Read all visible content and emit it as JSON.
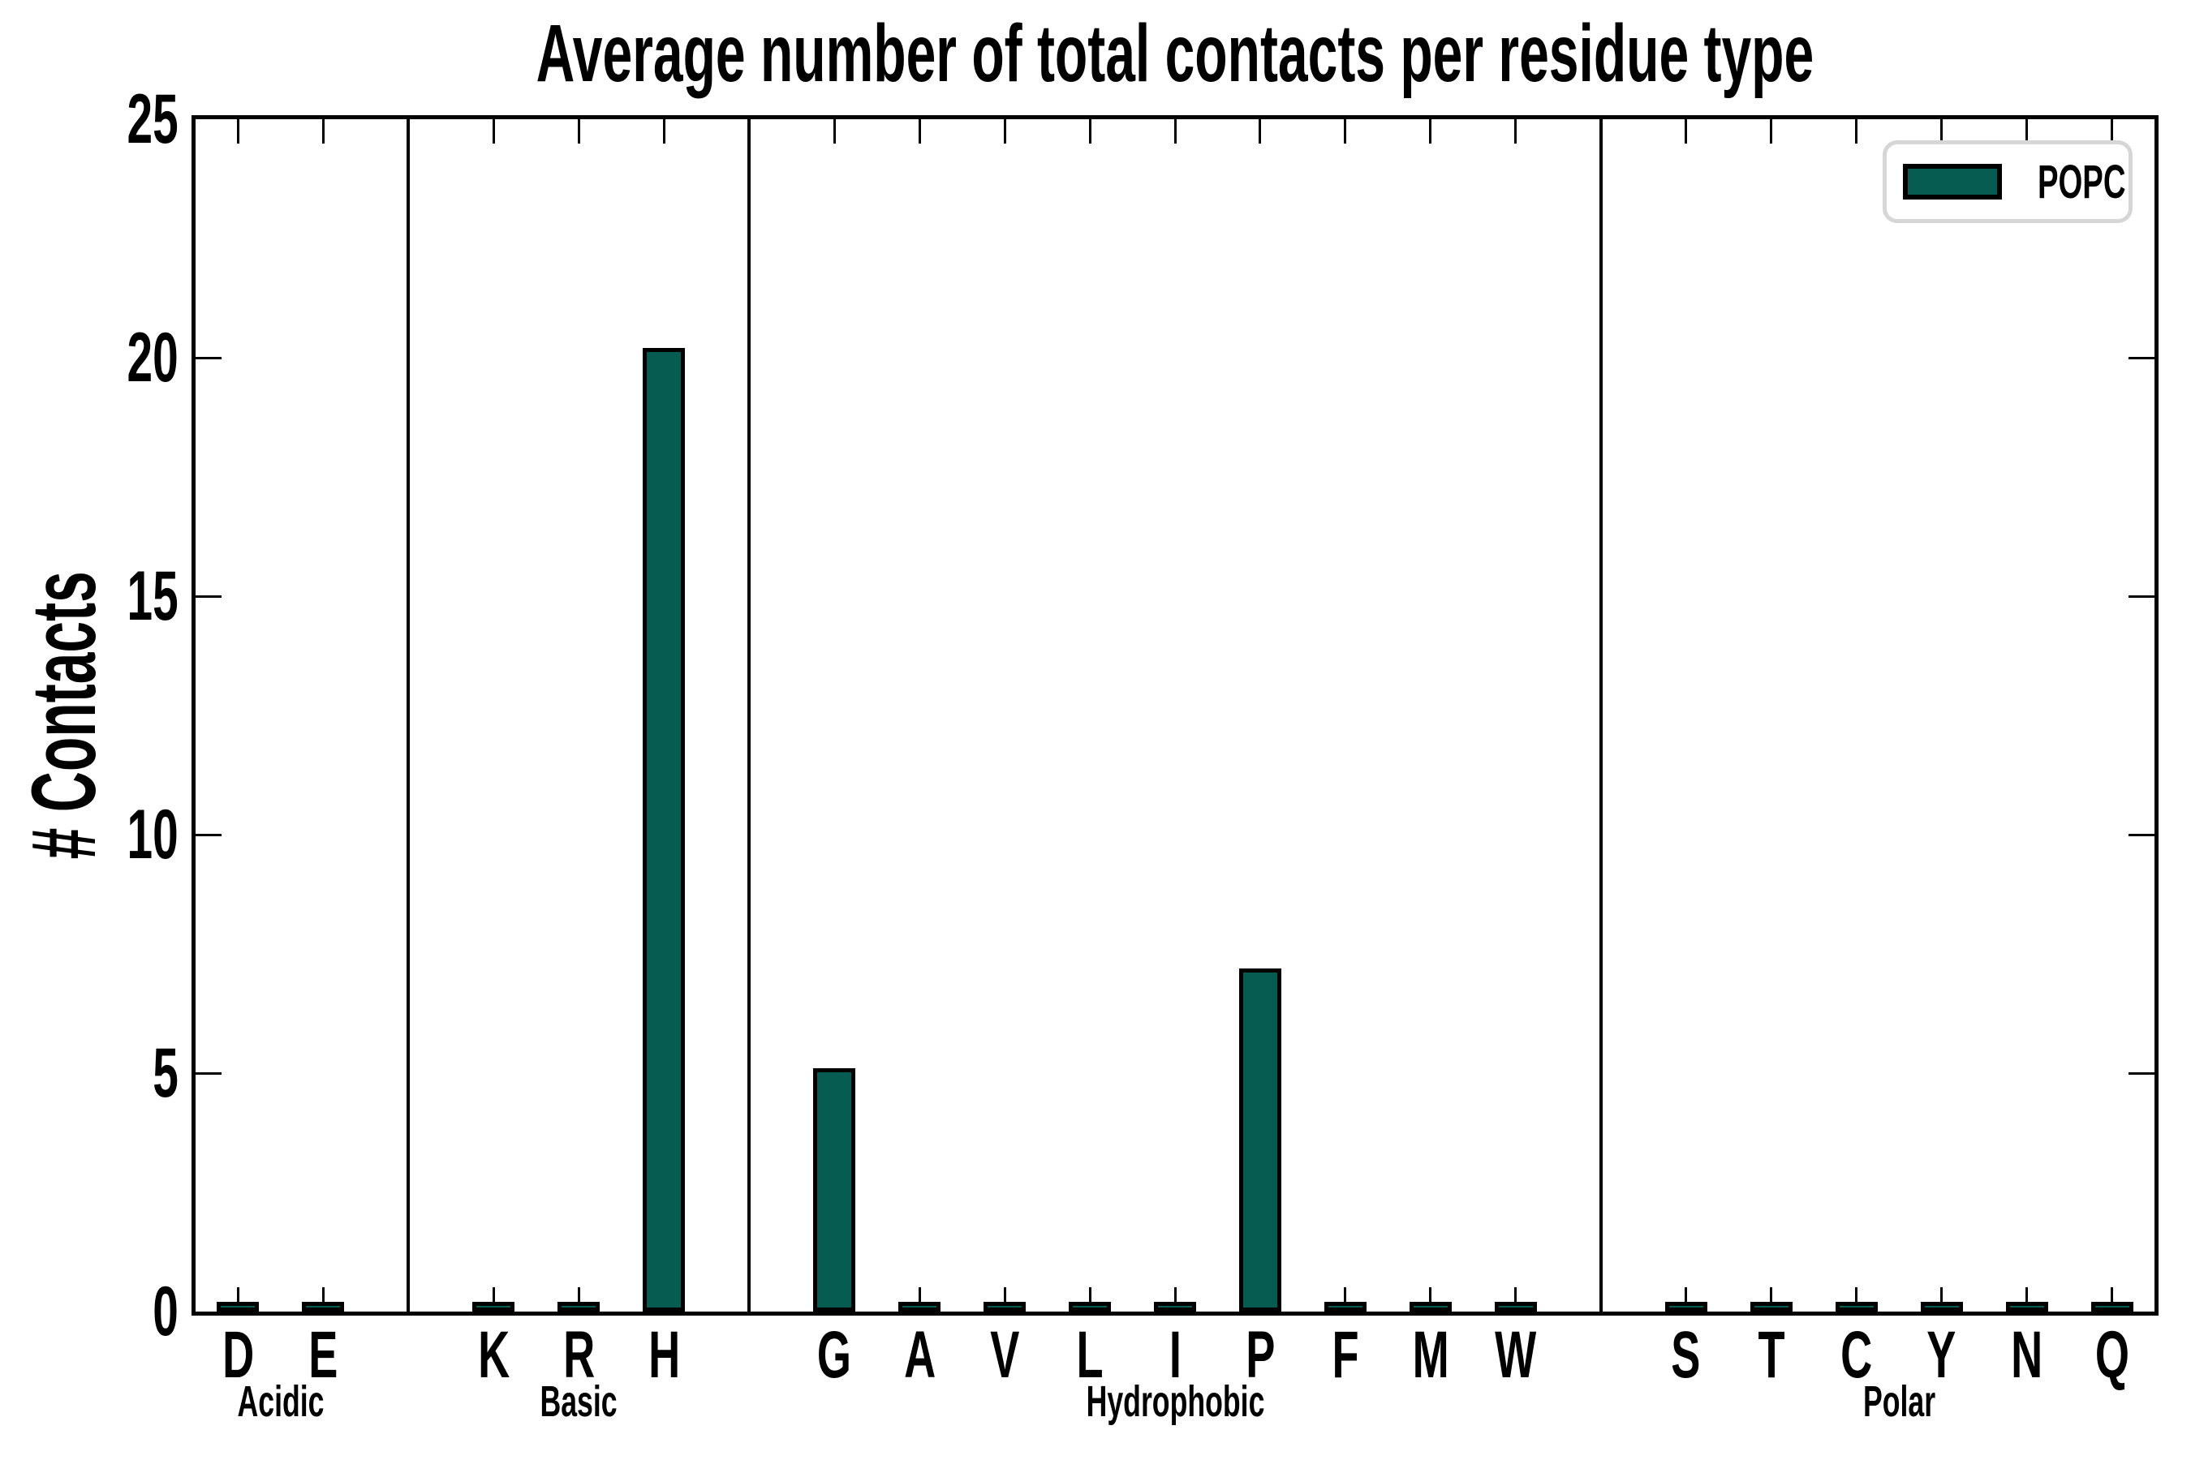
{
  "chart_data": {
    "type": "bar",
    "title": "Average number of total contacts per residue type",
    "xlabel": "",
    "ylabel": "# Contacts",
    "ylim": [
      0,
      25
    ],
    "yticks": [
      0,
      5,
      10,
      15,
      20,
      25
    ],
    "grid": false,
    "bar_color": "#075c51",
    "bar_edge_color": "#000000",
    "legend": {
      "label": "POPC",
      "position": "upper right"
    },
    "groups": [
      {
        "label": "Acidic",
        "residues": [
          "D",
          "E"
        ],
        "values": [
          0.05,
          0.05
        ]
      },
      {
        "label": "Basic",
        "residues": [
          "K",
          "R",
          "H"
        ],
        "values": [
          0.05,
          0.05,
          20.2
        ]
      },
      {
        "label": "Hydrophobic",
        "residues": [
          "G",
          "A",
          "V",
          "L",
          "I",
          "P",
          "F",
          "M",
          "W"
        ],
        "values": [
          5.1,
          0.05,
          0.05,
          0.05,
          0.05,
          7.2,
          0.05,
          0.05,
          0.05
        ]
      },
      {
        "label": "Polar",
        "residues": [
          "S",
          "T",
          "C",
          "Y",
          "N",
          "Q"
        ],
        "values": [
          0.05,
          0.05,
          0.05,
          0.05,
          0.05,
          0.05
        ]
      }
    ],
    "categories": [
      "D",
      "E",
      "K",
      "R",
      "H",
      "G",
      "A",
      "V",
      "L",
      "I",
      "P",
      "F",
      "M",
      "W",
      "S",
      "T",
      "C",
      "Y",
      "N",
      "Q"
    ],
    "values": [
      0.05,
      0.05,
      0.05,
      0.05,
      20.2,
      5.1,
      0.05,
      0.05,
      0.05,
      0.05,
      7.2,
      0.05,
      0.05,
      0.05,
      0.05,
      0.05,
      0.05,
      0.05,
      0.05,
      0.05
    ]
  }
}
